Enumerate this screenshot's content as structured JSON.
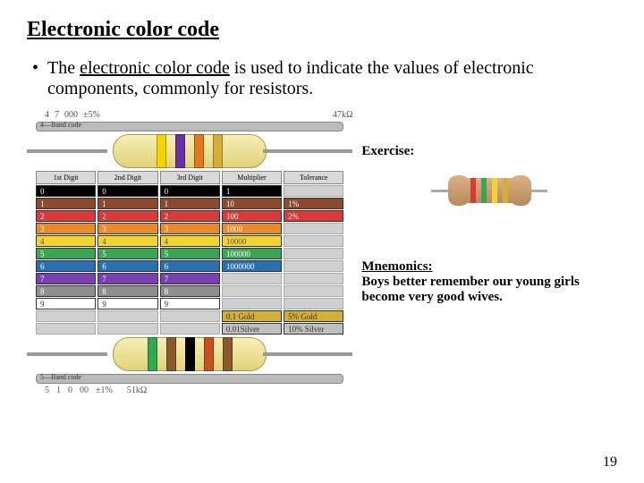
{
  "title": "Electronic color code",
  "bullet": {
    "lead": "The ",
    "underlined": "electronic color code",
    "rest": " is used to indicate the values of electronic components, commonly for resistors."
  },
  "top_code": {
    "digits": [
      "4",
      "7",
      "000"
    ],
    "tol": "±5%",
    "value": "47kΩ"
  },
  "header_4band": "4—Band code",
  "header_5band": "5—Band code",
  "resistor_4band_colors": [
    "#f5d400",
    "#6a2fa3",
    "#e07a1a",
    "#d4af37"
  ],
  "resistor_5band_colors": [
    "#32a852",
    "#8b5a2b",
    "#000000",
    "#c94f1e",
    "#8b5a2b"
  ],
  "column_headers": [
    "1st Digit",
    "2nd Digit",
    "3rd Digit",
    "Multiplier",
    "Tolerance"
  ],
  "rows": [
    {
      "label": "0",
      "mult": "1",
      "tol": null,
      "bg": "#000000",
      "fg": "#ffffff"
    },
    {
      "label": "1",
      "mult": "10",
      "tol": "1%",
      "bg": "#8b4a2b",
      "fg": "#ffffff",
      "tol_bg": "#8b4a2b"
    },
    {
      "label": "2",
      "mult": "100",
      "tol": "2%",
      "bg": "#d83a3a",
      "fg": "#ffffff",
      "tol_bg": "#d83a3a"
    },
    {
      "label": "3",
      "mult": "1000",
      "tol": null,
      "bg": "#e88b2e",
      "fg": "#ffffff"
    },
    {
      "label": "4",
      "mult": "10000",
      "tol": null,
      "bg": "#f3d233",
      "fg": "#555"
    },
    {
      "label": "5",
      "mult": "100000",
      "tol": null,
      "bg": "#3aa655",
      "fg": "#ffffff"
    },
    {
      "label": "6",
      "mult": "1000000",
      "tol": null,
      "bg": "#2b6fb3",
      "fg": "#ffffff"
    },
    {
      "label": "7",
      "mult": null,
      "tol": null,
      "bg": "#7a3fb0",
      "fg": "#ffffff"
    },
    {
      "label": "8",
      "mult": null,
      "tol": null,
      "bg": "#8f8f8f",
      "fg": "#ffffff"
    },
    {
      "label": "9",
      "mult": null,
      "tol": null,
      "bg": "#ffffff",
      "fg": "#333"
    }
  ],
  "extra_mult": [
    {
      "text": "0.1 Gold",
      "bg": "#d4af37",
      "tol_text": "5% Gold",
      "tol_bg": "#d4af37"
    },
    {
      "text": "0.01Silver",
      "bg": "#c0c0c0",
      "tol_text": "10% Silver",
      "tol_bg": "#c0c0c0"
    }
  ],
  "bot_code": {
    "digits": [
      "5",
      "1",
      "0",
      "00"
    ],
    "tol": "±1%",
    "value": "51kΩ"
  },
  "exercise_heading": "Exercise:",
  "mini_bands": [
    "#d83a3a",
    "#3aa655",
    "#f3d233",
    "#d4af37"
  ],
  "mnemonics": {
    "heading": "Mnemonics:",
    "text": "Boys better remember our young girls become very good wives."
  },
  "page_number": "19"
}
